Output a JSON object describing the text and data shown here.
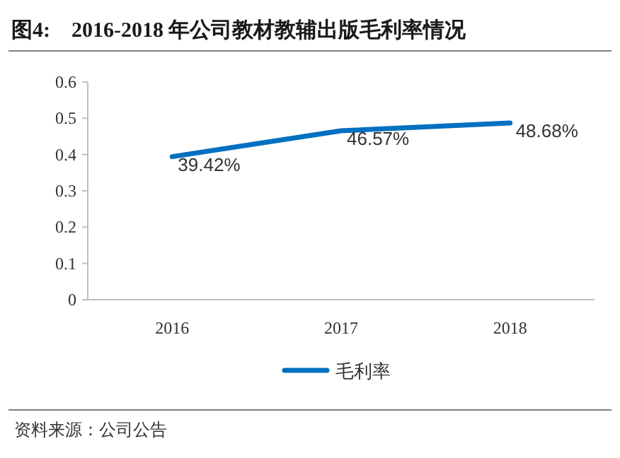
{
  "chart_data": {
    "type": "line",
    "title": "图4:　2016-2018 年公司教材教辅出版毛利率情况",
    "categories": [
      "2016",
      "2017",
      "2018"
    ],
    "series": [
      {
        "name": "毛利率",
        "color": "#0070c0",
        "values": [
          0.3942,
          0.4657,
          0.4868
        ],
        "value_labels": [
          "39.42%",
          "46.57%",
          "48.68%"
        ]
      }
    ],
    "ylim": [
      0,
      0.6
    ],
    "yticks": [
      0,
      0.1,
      0.2,
      0.3,
      0.4,
      0.5,
      0.6
    ],
    "grid": false,
    "legend": "bottom",
    "marker": "none",
    "line_style": "solid",
    "annotations": [
      "资料来源：公司公告"
    ]
  }
}
